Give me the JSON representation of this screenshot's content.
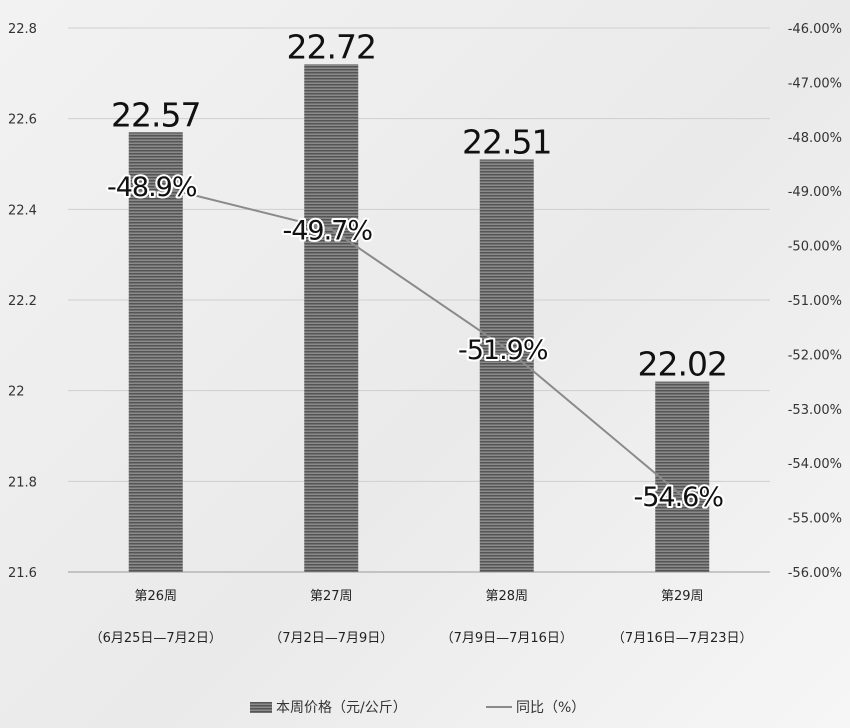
{
  "chart_data": {
    "type": "bar",
    "categories": [
      "第26周",
      "第27周",
      "第28周",
      "第29周"
    ],
    "category_sublabels": [
      "（6月25日—7月2日）",
      "（7月2日—7月9日）",
      "（7月9日—7月16日）",
      "（7月16日—7月23日）"
    ],
    "series": [
      {
        "name": "本周价格（元/公斤）",
        "type": "bar",
        "axis": "left",
        "values": [
          22.57,
          22.72,
          22.51,
          22.02
        ],
        "labels": [
          "22.57",
          "22.72",
          "22.51",
          "22.02"
        ]
      },
      {
        "name": "同比（%）",
        "type": "line",
        "axis": "right",
        "values": [
          -48.9,
          -49.7,
          -51.9,
          -54.6
        ],
        "labels": [
          "-48.9%",
          "-49.7%",
          "-51.9%",
          "-54.6%"
        ]
      }
    ],
    "ylim": [
      21.6,
      22.8
    ],
    "y_ticks": [
      "22.8",
      "22.6",
      "22.4",
      "22.2",
      "22",
      "21.8",
      "21.6"
    ],
    "y2lim": [
      -56,
      -46
    ],
    "y2_ticks": [
      "-46.00%",
      "-47.00%",
      "-48.00%",
      "-49.00%",
      "-50.00%",
      "-51.00%",
      "-52.00%",
      "-53.00%",
      "-54.00%",
      "-55.00%",
      "-56.00%"
    ],
    "grid": true,
    "legend_position": "bottom",
    "colors": {
      "bar": "#6a6a6a",
      "line": "#8a8a8a",
      "grid": "#cfcfcf"
    }
  }
}
